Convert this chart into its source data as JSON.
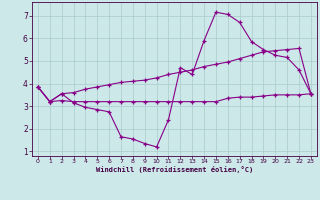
{
  "xlabel": "Windchill (Refroidissement éolien,°C)",
  "xlim": [
    -0.5,
    23.5
  ],
  "ylim": [
    0.8,
    7.6
  ],
  "xticks": [
    0,
    1,
    2,
    3,
    4,
    5,
    6,
    7,
    8,
    9,
    10,
    11,
    12,
    13,
    14,
    15,
    16,
    17,
    18,
    19,
    20,
    21,
    22,
    23
  ],
  "yticks": [
    1,
    2,
    3,
    4,
    5,
    6,
    7
  ],
  "bg_color": "#cce8e8",
  "line_color": "#880088",
  "grid_color": "#aacccc",
  "line1_x": [
    0,
    1,
    2,
    3,
    4,
    5,
    6,
    7,
    8,
    9,
    10,
    11,
    12,
    13,
    14,
    15,
    16,
    17,
    18,
    19,
    20,
    21,
    22,
    23
  ],
  "line1_y": [
    3.85,
    3.2,
    3.55,
    3.15,
    2.95,
    2.85,
    2.75,
    1.65,
    1.55,
    1.35,
    1.2,
    2.4,
    4.7,
    4.4,
    5.9,
    7.15,
    7.05,
    6.7,
    5.85,
    5.5,
    5.25,
    5.15,
    4.6,
    3.55
  ],
  "line2_x": [
    0,
    1,
    2,
    3,
    4,
    5,
    6,
    7,
    8,
    9,
    10,
    11,
    12,
    13,
    14,
    15,
    16,
    17,
    18,
    19,
    20,
    21,
    22,
    23
  ],
  "line2_y": [
    3.85,
    3.2,
    3.55,
    3.6,
    3.75,
    3.85,
    3.95,
    4.05,
    4.1,
    4.15,
    4.25,
    4.4,
    4.5,
    4.6,
    4.75,
    4.85,
    4.95,
    5.1,
    5.25,
    5.4,
    5.45,
    5.5,
    5.55,
    3.55
  ],
  "line3_x": [
    0,
    1,
    2,
    3,
    4,
    5,
    6,
    7,
    8,
    9,
    10,
    11,
    12,
    13,
    14,
    15,
    16,
    17,
    18,
    19,
    20,
    21,
    22,
    23
  ],
  "line3_y": [
    3.85,
    3.2,
    3.25,
    3.2,
    3.2,
    3.2,
    3.2,
    3.2,
    3.2,
    3.2,
    3.2,
    3.2,
    3.2,
    3.2,
    3.2,
    3.2,
    3.35,
    3.4,
    3.4,
    3.45,
    3.5,
    3.5,
    3.5,
    3.55
  ]
}
